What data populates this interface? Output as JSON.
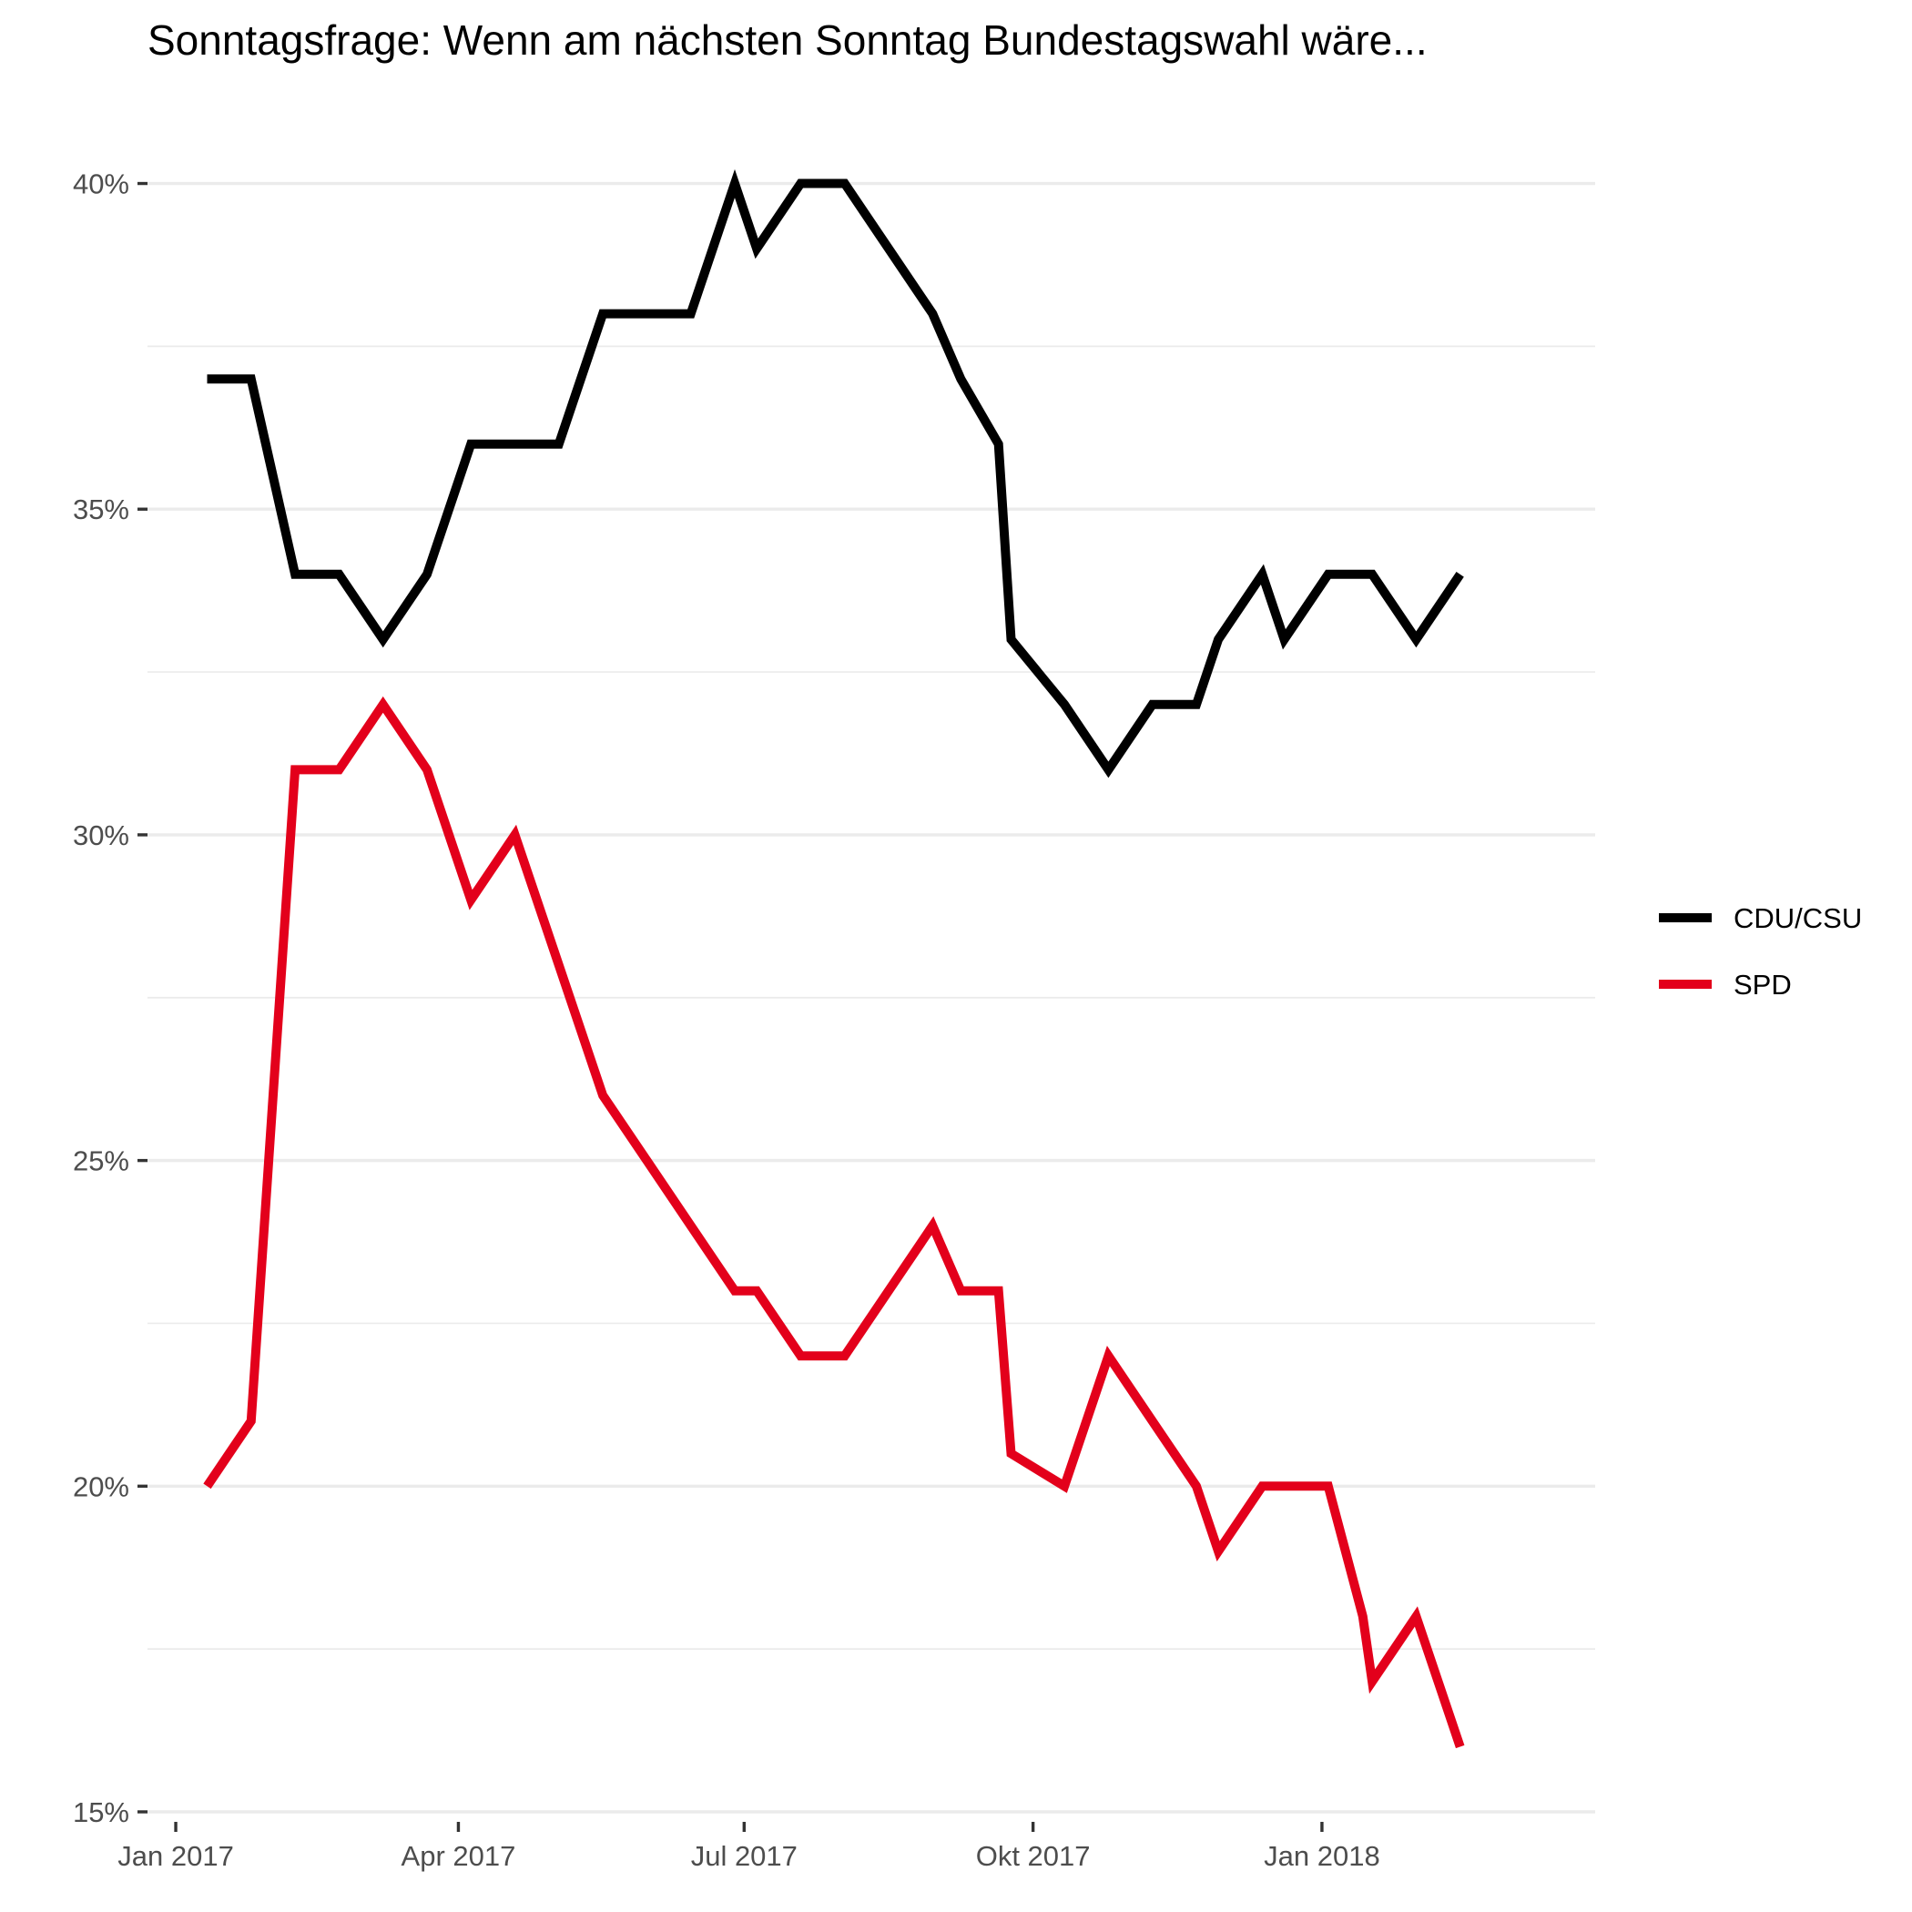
{
  "chart_data": {
    "type": "line",
    "title": "Sonntagsfrage: Wenn am nächsten Sonntag Bundestagswahl wäre...",
    "xlabel": "",
    "ylabel": "",
    "x_axis": {
      "type": "date",
      "range": [
        "2016-12-23",
        "2018-03-29"
      ],
      "ticks": [
        {
          "date": "2017-01-01",
          "label": "Jan 2017"
        },
        {
          "date": "2017-04-01",
          "label": "Apr 2017"
        },
        {
          "date": "2017-07-01",
          "label": "Jul 2017"
        },
        {
          "date": "2017-10-01",
          "label": "Okt 2017"
        },
        {
          "date": "2018-01-01",
          "label": "Jan 2018"
        }
      ]
    },
    "y_axis": {
      "range": [
        15,
        41
      ],
      "ticks": [
        {
          "value": 15,
          "label": "15%"
        },
        {
          "value": 20,
          "label": "20%"
        },
        {
          "value": 25,
          "label": "25%"
        },
        {
          "value": 30,
          "label": "30%"
        },
        {
          "value": 35,
          "label": "35%"
        },
        {
          "value": 40,
          "label": "40%"
        }
      ],
      "minor_gridlines": [
        17.5,
        22.5,
        27.5,
        32.5,
        37.5
      ]
    },
    "grid": true,
    "legend_position": "right",
    "series": [
      {
        "name": "CDU/CSU",
        "color": "#000000",
        "points": [
          {
            "x": "2017-01-11",
            "y": 37
          },
          {
            "x": "2017-01-25",
            "y": 37
          },
          {
            "x": "2017-02-08",
            "y": 34
          },
          {
            "x": "2017-02-22",
            "y": 34
          },
          {
            "x": "2017-03-08",
            "y": 33
          },
          {
            "x": "2017-03-22",
            "y": 34
          },
          {
            "x": "2017-04-05",
            "y": 36
          },
          {
            "x": "2017-04-19",
            "y": 36
          },
          {
            "x": "2017-05-03",
            "y": 36
          },
          {
            "x": "2017-05-17",
            "y": 38
          },
          {
            "x": "2017-05-31",
            "y": 38
          },
          {
            "x": "2017-06-14",
            "y": 38
          },
          {
            "x": "2017-06-28",
            "y": 40
          },
          {
            "x": "2017-07-05",
            "y": 39
          },
          {
            "x": "2017-07-19",
            "y": 40
          },
          {
            "x": "2017-08-02",
            "y": 40
          },
          {
            "x": "2017-08-16",
            "y": 39
          },
          {
            "x": "2017-08-30",
            "y": 38
          },
          {
            "x": "2017-09-08",
            "y": 37
          },
          {
            "x": "2017-09-20",
            "y": 36
          },
          {
            "x": "2017-09-24",
            "y": 33
          },
          {
            "x": "2017-10-11",
            "y": 32
          },
          {
            "x": "2017-10-25",
            "y": 31
          },
          {
            "x": "2017-11-08",
            "y": 32
          },
          {
            "x": "2017-11-22",
            "y": 32
          },
          {
            "x": "2017-11-29",
            "y": 33
          },
          {
            "x": "2017-12-13",
            "y": 34
          },
          {
            "x": "2017-12-20",
            "y": 33
          },
          {
            "x": "2018-01-03",
            "y": 34
          },
          {
            "x": "2018-01-17",
            "y": 34
          },
          {
            "x": "2018-01-31",
            "y": 33
          },
          {
            "x": "2018-02-14",
            "y": 34
          }
        ]
      },
      {
        "name": "SPD",
        "color": "#e3001b",
        "points": [
          {
            "x": "2017-01-11",
            "y": 20
          },
          {
            "x": "2017-01-25",
            "y": 21
          },
          {
            "x": "2017-02-08",
            "y": 31
          },
          {
            "x": "2017-02-22",
            "y": 31
          },
          {
            "x": "2017-03-08",
            "y": 32
          },
          {
            "x": "2017-03-22",
            "y": 31
          },
          {
            "x": "2017-04-05",
            "y": 29
          },
          {
            "x": "2017-04-19",
            "y": 30
          },
          {
            "x": "2017-05-03",
            "y": 28
          },
          {
            "x": "2017-05-17",
            "y": 26
          },
          {
            "x": "2017-05-31",
            "y": 25
          },
          {
            "x": "2017-06-14",
            "y": 24
          },
          {
            "x": "2017-06-28",
            "y": 23
          },
          {
            "x": "2017-07-05",
            "y": 23
          },
          {
            "x": "2017-07-19",
            "y": 22
          },
          {
            "x": "2017-08-02",
            "y": 22
          },
          {
            "x": "2017-08-16",
            "y": 23
          },
          {
            "x": "2017-08-30",
            "y": 24
          },
          {
            "x": "2017-09-08",
            "y": 23
          },
          {
            "x": "2017-09-20",
            "y": 23
          },
          {
            "x": "2017-09-24",
            "y": 20.5
          },
          {
            "x": "2017-10-11",
            "y": 20
          },
          {
            "x": "2017-10-25",
            "y": 22
          },
          {
            "x": "2017-11-08",
            "y": 21
          },
          {
            "x": "2017-11-22",
            "y": 20
          },
          {
            "x": "2017-11-29",
            "y": 19
          },
          {
            "x": "2017-12-13",
            "y": 20
          },
          {
            "x": "2017-12-27",
            "y": 20
          },
          {
            "x": "2018-01-03",
            "y": 20
          },
          {
            "x": "2018-01-14",
            "y": 18
          },
          {
            "x": "2018-01-17",
            "y": 17
          },
          {
            "x": "2018-01-31",
            "y": 18
          },
          {
            "x": "2018-02-14",
            "y": 16
          }
        ]
      }
    ]
  }
}
